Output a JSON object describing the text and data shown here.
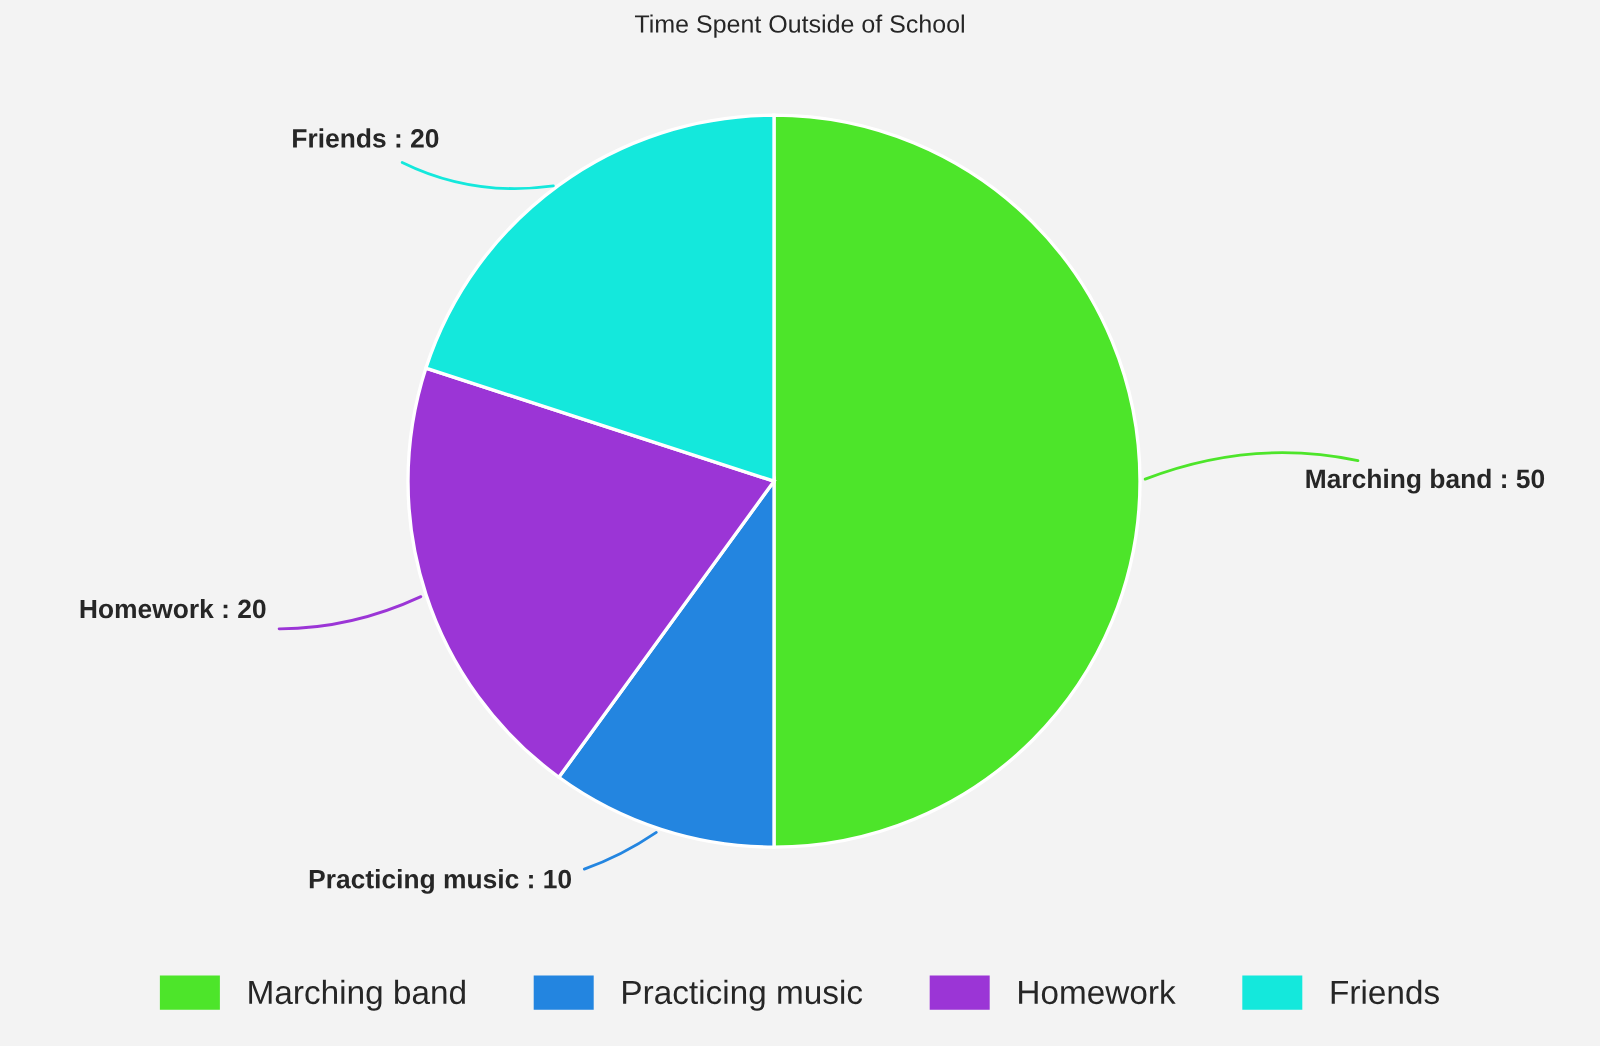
{
  "chart_data": {
    "type": "pie",
    "title": "Time Spent Outside of School",
    "categories": [
      "Marching band",
      "Practicing music",
      "Homework",
      "Friends"
    ],
    "values": [
      50,
      10,
      20,
      20
    ],
    "colors": [
      "#4de52a",
      "#2385e0",
      "#9b35d6",
      "#14e8dc"
    ],
    "value_labels": [
      "Marching band : 50",
      "Practicing music : 10",
      "Homework : 20",
      "Friends : 20"
    ],
    "legend": "bottom"
  }
}
